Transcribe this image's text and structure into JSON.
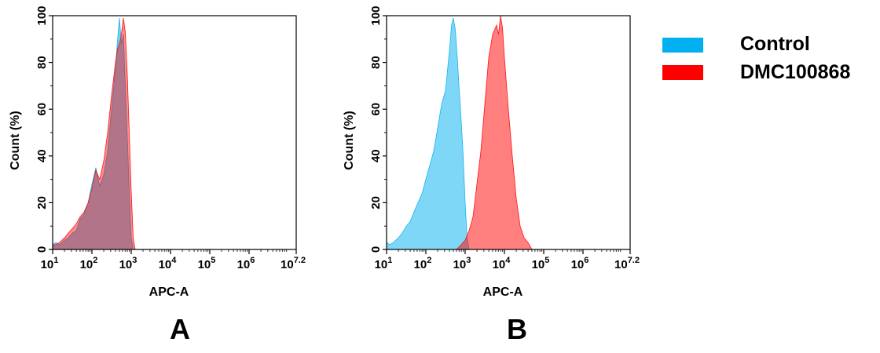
{
  "legend": {
    "items": [
      {
        "label": "Control",
        "color": "#00b0f0"
      },
      {
        "label": "DMC100868",
        "color": "#ff0000"
      }
    ]
  },
  "chart_data": [
    {
      "type": "area",
      "panel_label": "A",
      "xlabel": "APC-A",
      "ylabel": "Count  (%)",
      "x_scale": "log10",
      "xlim": [
        10,
        15848931
      ],
      "ylim": [
        0,
        100
      ],
      "x_ticks": [
        "1",
        "2",
        "3",
        "4",
        "5",
        "6",
        "7.2"
      ],
      "y_ticks": [
        "0",
        "20",
        "40",
        "60",
        "80",
        "100"
      ],
      "grid": false,
      "series": [
        {
          "name": "Control",
          "color": "#00b0f0",
          "fill_opacity": 0.55,
          "x": [
            10,
            12,
            15,
            20,
            25,
            32,
            40,
            50,
            63,
            80,
            100,
            126,
            158,
            200,
            251,
            316,
            398,
            450,
            501,
            562,
            631,
            708,
            794,
            891,
            1000,
            1122
          ],
          "y": [
            2,
            3,
            2,
            4,
            5,
            7,
            8,
            13,
            15,
            20,
            28,
            35,
            27,
            32,
            42,
            60,
            78,
            90,
            99,
            88,
            92,
            70,
            48,
            25,
            5,
            0
          ]
        },
        {
          "name": "DMC100868",
          "color": "#ff0000",
          "fill_opacity": 0.45,
          "x": [
            10,
            12,
            15,
            20,
            25,
            32,
            40,
            50,
            63,
            80,
            100,
            126,
            158,
            200,
            251,
            316,
            398,
            450,
            501,
            562,
            631,
            708,
            794,
            891,
            1000,
            1122,
            1259
          ],
          "y": [
            2,
            2,
            3,
            5,
            7,
            9,
            11,
            14,
            16,
            20,
            26,
            34,
            30,
            38,
            50,
            66,
            80,
            86,
            88,
            92,
            99,
            93,
            75,
            50,
            25,
            5,
            0
          ]
        }
      ]
    },
    {
      "type": "area",
      "panel_label": "B",
      "xlabel": "APC-A",
      "ylabel": "Count  (%)",
      "x_scale": "log10",
      "xlim": [
        10,
        15848931
      ],
      "ylim": [
        0,
        100
      ],
      "x_ticks": [
        "1",
        "2",
        "3",
        "4",
        "5",
        "6",
        "7.2"
      ],
      "y_ticks": [
        "0",
        "20",
        "40",
        "60",
        "80",
        "100"
      ],
      "grid": false,
      "series": [
        {
          "name": "Control",
          "color": "#00b0f0",
          "fill_opacity": 0.5,
          "x": [
            10,
            12,
            15,
            20,
            25,
            32,
            40,
            50,
            63,
            80,
            100,
            126,
            158,
            200,
            251,
            316,
            398,
            450,
            501,
            562,
            631,
            708,
            794,
            891,
            1000,
            1122,
            1259
          ],
          "y": [
            3,
            2,
            3,
            5,
            7,
            10,
            12,
            16,
            20,
            24,
            30,
            36,
            42,
            52,
            62,
            68,
            85,
            96,
            99,
            94,
            82,
            68,
            55,
            40,
            20,
            5,
            0
          ]
        },
        {
          "name": "DMC100868",
          "color": "#ff0000",
          "fill_opacity": 0.5,
          "x": [
            600,
            794,
            1000,
            1259,
            1585,
            1995,
            2512,
            3162,
            3981,
            5012,
            6310,
            7079,
            7943,
            8913,
            10000,
            12589,
            15849,
            19953,
            25119,
            31623,
            39811,
            50119
          ],
          "y": [
            0,
            2,
            4,
            8,
            14,
            28,
            42,
            62,
            82,
            92,
            96,
            92,
            100,
            95,
            82,
            60,
            40,
            22,
            10,
            5,
            3,
            0
          ]
        }
      ]
    }
  ]
}
